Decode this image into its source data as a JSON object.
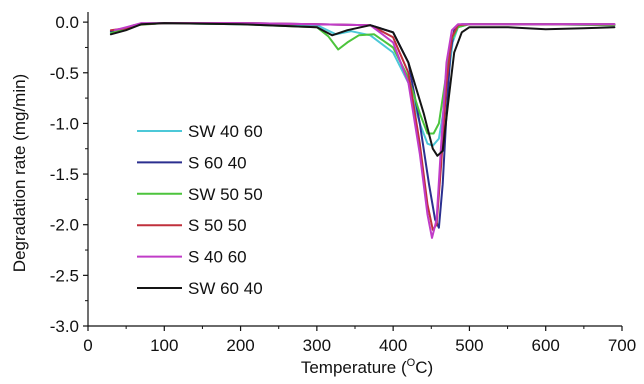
{
  "chart_data": {
    "type": "line",
    "xlabel": "Temperature (",
    "xlabel_sup": "O",
    "xlabel_tail": "C)",
    "ylabel": "Degradation rate (mg/min)",
    "xlim": [
      0,
      700
    ],
    "ylim": [
      -3.0,
      0.1
    ],
    "x_ticks": [
      "0",
      "100",
      "200",
      "300",
      "400",
      "500",
      "600",
      "700"
    ],
    "y_ticks": [
      "0.0",
      "-0.5",
      "-1.0",
      "-1.5",
      "-2.0",
      "-2.5",
      "-3.0"
    ],
    "grid": false,
    "legend_position": "left-middle",
    "series": [
      {
        "name": "SW 40 60",
        "color": "#4cc8d8",
        "points": [
          [
            30,
            -0.1
          ],
          [
            50,
            -0.07
          ],
          [
            70,
            -0.02
          ],
          [
            100,
            -0.01
          ],
          [
            200,
            -0.02
          ],
          [
            300,
            -0.03
          ],
          [
            325,
            -0.12
          ],
          [
            345,
            -0.09
          ],
          [
            370,
            -0.13
          ],
          [
            400,
            -0.3
          ],
          [
            420,
            -0.6
          ],
          [
            435,
            -1.0
          ],
          [
            445,
            -1.2
          ],
          [
            452,
            -1.22
          ],
          [
            460,
            -1.15
          ],
          [
            470,
            -0.7
          ],
          [
            478,
            -0.2
          ],
          [
            485,
            -0.05
          ],
          [
            500,
            -0.02
          ],
          [
            600,
            -0.02
          ],
          [
            690,
            -0.03
          ]
        ]
      },
      {
        "name": "S 60 40",
        "color": "#2b2f8f",
        "points": [
          [
            30,
            -0.09
          ],
          [
            50,
            -0.06
          ],
          [
            70,
            -0.02
          ],
          [
            100,
            -0.01
          ],
          [
            200,
            -0.01
          ],
          [
            300,
            -0.02
          ],
          [
            370,
            -0.03
          ],
          [
            400,
            -0.1
          ],
          [
            420,
            -0.4
          ],
          [
            435,
            -1.0
          ],
          [
            447,
            -1.6
          ],
          [
            455,
            -1.95
          ],
          [
            460,
            -2.03
          ],
          [
            465,
            -1.6
          ],
          [
            470,
            -0.9
          ],
          [
            475,
            -0.3
          ],
          [
            480,
            -0.08
          ],
          [
            490,
            -0.02
          ],
          [
            600,
            -0.02
          ],
          [
            690,
            -0.02
          ]
        ]
      },
      {
        "name": "SW 50 50",
        "color": "#4cc43c",
        "points": [
          [
            30,
            -0.11
          ],
          [
            60,
            -0.03
          ],
          [
            100,
            -0.01
          ],
          [
            200,
            -0.02
          ],
          [
            300,
            -0.05
          ],
          [
            315,
            -0.14
          ],
          [
            328,
            -0.27
          ],
          [
            340,
            -0.2
          ],
          [
            355,
            -0.13
          ],
          [
            375,
            -0.12
          ],
          [
            400,
            -0.25
          ],
          [
            420,
            -0.55
          ],
          [
            435,
            -0.9
          ],
          [
            445,
            -1.1
          ],
          [
            453,
            -1.1
          ],
          [
            460,
            -1.0
          ],
          [
            468,
            -0.6
          ],
          [
            475,
            -0.2
          ],
          [
            485,
            -0.05
          ],
          [
            500,
            -0.02
          ],
          [
            600,
            -0.02
          ],
          [
            690,
            -0.03
          ]
        ]
      },
      {
        "name": "S 50 50",
        "color": "#c0303c",
        "points": [
          [
            30,
            -0.08
          ],
          [
            50,
            -0.06
          ],
          [
            70,
            -0.02
          ],
          [
            100,
            -0.01
          ],
          [
            200,
            -0.01
          ],
          [
            300,
            -0.02
          ],
          [
            370,
            -0.03
          ],
          [
            400,
            -0.15
          ],
          [
            420,
            -0.5
          ],
          [
            435,
            -1.2
          ],
          [
            445,
            -1.8
          ],
          [
            452,
            -2.05
          ],
          [
            457,
            -2.0
          ],
          [
            463,
            -1.4
          ],
          [
            470,
            -0.6
          ],
          [
            477,
            -0.15
          ],
          [
            485,
            -0.03
          ],
          [
            500,
            -0.02
          ],
          [
            600,
            -0.02
          ],
          [
            690,
            -0.02
          ]
        ]
      },
      {
        "name": "S 40 60",
        "color": "#c03cc8",
        "points": [
          [
            35,
            -0.08
          ],
          [
            55,
            -0.04
          ],
          [
            70,
            -0.01
          ],
          [
            100,
            -0.01
          ],
          [
            200,
            -0.01
          ],
          [
            300,
            -0.02
          ],
          [
            370,
            -0.03
          ],
          [
            400,
            -0.2
          ],
          [
            420,
            -0.6
          ],
          [
            435,
            -1.3
          ],
          [
            445,
            -1.9
          ],
          [
            451,
            -2.13
          ],
          [
            457,
            -1.95
          ],
          [
            463,
            -1.2
          ],
          [
            470,
            -0.4
          ],
          [
            477,
            -0.08
          ],
          [
            485,
            -0.02
          ],
          [
            500,
            -0.02
          ],
          [
            600,
            -0.02
          ],
          [
            690,
            -0.02
          ]
        ]
      },
      {
        "name": "SW 60 40",
        "color": "#151515",
        "points": [
          [
            30,
            -0.12
          ],
          [
            50,
            -0.08
          ],
          [
            70,
            -0.02
          ],
          [
            100,
            -0.01
          ],
          [
            200,
            -0.02
          ],
          [
            300,
            -0.05
          ],
          [
            320,
            -0.13
          ],
          [
            340,
            -0.08
          ],
          [
            370,
            -0.03
          ],
          [
            400,
            -0.1
          ],
          [
            420,
            -0.4
          ],
          [
            440,
            -0.9
          ],
          [
            452,
            -1.25
          ],
          [
            458,
            -1.32
          ],
          [
            465,
            -1.27
          ],
          [
            472,
            -0.8
          ],
          [
            480,
            -0.3
          ],
          [
            490,
            -0.1
          ],
          [
            500,
            -0.05
          ],
          [
            550,
            -0.05
          ],
          [
            600,
            -0.07
          ],
          [
            650,
            -0.06
          ],
          [
            690,
            -0.05
          ]
        ]
      }
    ]
  }
}
